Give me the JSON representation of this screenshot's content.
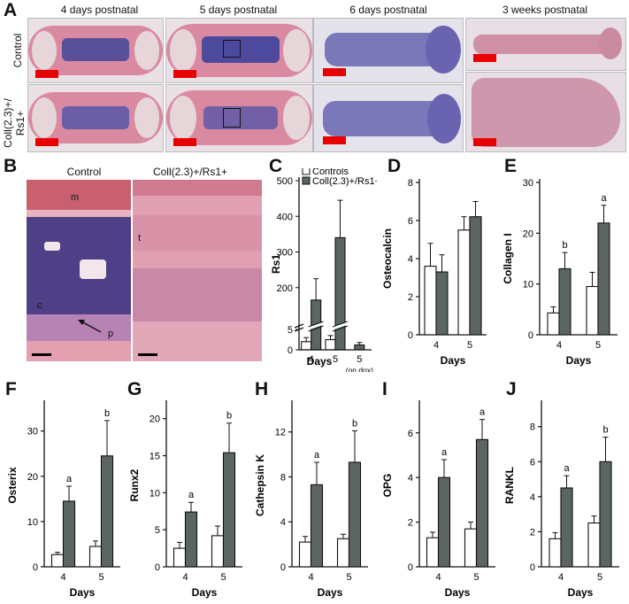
{
  "panelA": {
    "letter": "A",
    "columns": [
      "4 days postnatal",
      "5 days postnatal",
      "6 days postnatal",
      "3 weeks postnatal"
    ],
    "rows": [
      "Control",
      "Coll(2.3)+/\nRs1+"
    ],
    "row2_line1": "Coll(2.3)+/",
    "row2_line2": "Rs1+"
  },
  "panelB": {
    "letter": "B",
    "left_title": "Control",
    "right_title": "Coll(2.3)+/Rs1+",
    "labels": {
      "m": "m",
      "t": "t",
      "c": "c",
      "p": "p"
    }
  },
  "colors": {
    "control": "#ffffff",
    "rs1": "#5b6662",
    "scale_bar": "#e80000",
    "he_pink": "#d98aa0",
    "marrow": "#5a4f9a"
  },
  "chart_data": [
    {
      "id": "C",
      "letter": "C",
      "type": "bar",
      "ylabel": "Rs1",
      "xlabel": "Days",
      "categories": [
        "4",
        "5",
        "5"
      ],
      "category_sub": [
        "",
        "",
        "(on dox)"
      ],
      "legend": [
        "Controls",
        "Coll(2.3)+/Rs1+"
      ],
      "yticks_upper": [
        200,
        300,
        400,
        500
      ],
      "yticks_lower": [
        0,
        5
      ],
      "ylim_upper": [
        100,
        500
      ],
      "ylim_lower": [
        0,
        5
      ],
      "broken_axis": true,
      "series": [
        {
          "name": "Controls",
          "values": [
            2,
            2.5,
            null
          ],
          "err": [
            1,
            1,
            null
          ]
        },
        {
          "name": "Coll(2.3)+/Rs1+",
          "values": [
            165,
            340,
            1.2
          ],
          "err": [
            60,
            105,
            0.6
          ]
        }
      ]
    },
    {
      "id": "D",
      "letter": "D",
      "type": "bar",
      "ylabel": "Osteocalcin",
      "xlabel": "Days",
      "categories": [
        "4",
        "5"
      ],
      "yticks": [
        0,
        2,
        4,
        6,
        8
      ],
      "ylim": [
        0,
        8
      ],
      "series": [
        {
          "name": "Controls",
          "values": [
            3.6,
            5.5
          ],
          "err": [
            1.2,
            0.7
          ]
        },
        {
          "name": "Coll(2.3)+/Rs1+",
          "values": [
            3.3,
            6.2
          ],
          "err": [
            0.9,
            0.8
          ]
        }
      ],
      "annotations": []
    },
    {
      "id": "E",
      "letter": "E",
      "type": "bar",
      "ylabel": "Collagen I",
      "xlabel": "Days",
      "categories": [
        "4",
        "5"
      ],
      "yticks": [
        0,
        10,
        20,
        30
      ],
      "ylim": [
        0,
        30
      ],
      "series": [
        {
          "name": "Controls",
          "values": [
            4.3,
            9.5
          ],
          "err": [
            1.2,
            2.8
          ]
        },
        {
          "name": "Coll(2.3)+/Rs1+",
          "values": [
            13,
            22
          ],
          "err": [
            3.2,
            3.5
          ]
        }
      ],
      "annotations": [
        "b",
        "a"
      ]
    },
    {
      "id": "F",
      "letter": "F",
      "type": "bar",
      "ylabel": "Osterix",
      "xlabel": "Days",
      "categories": [
        "4",
        "5"
      ],
      "yticks": [
        0,
        10,
        20,
        30
      ],
      "ylim": [
        0,
        36
      ],
      "series": [
        {
          "name": "Controls",
          "values": [
            2.7,
            4.5
          ],
          "err": [
            0.5,
            1.2
          ]
        },
        {
          "name": "Coll(2.3)+/Rs1+",
          "values": [
            14.5,
            24.5
          ],
          "err": [
            3.3,
            7.8
          ]
        }
      ],
      "annotations": [
        "a",
        "b"
      ]
    },
    {
      "id": "G",
      "letter": "G",
      "type": "bar",
      "ylabel": "Runx2",
      "xlabel": "Days",
      "categories": [
        "4",
        "5"
      ],
      "yticks": [
        0,
        5,
        10,
        15,
        20
      ],
      "ylim": [
        0,
        22
      ],
      "series": [
        {
          "name": "Controls",
          "values": [
            2.5,
            4.2
          ],
          "err": [
            0.8,
            1.3
          ]
        },
        {
          "name": "Coll(2.3)+/Rs1+",
          "values": [
            7.4,
            15.4
          ],
          "err": [
            1.3,
            4.0
          ]
        }
      ],
      "annotations": [
        "a",
        "b"
      ]
    },
    {
      "id": "H",
      "letter": "H",
      "type": "bar",
      "ylabel": "Cathepsin K",
      "xlabel": "Days",
      "categories": [
        "4",
        "5"
      ],
      "yticks": [
        0,
        4,
        8,
        12
      ],
      "ylim": [
        0,
        14.5
      ],
      "series": [
        {
          "name": "Controls",
          "values": [
            2.2,
            2.5
          ],
          "err": [
            0.5,
            0.4
          ]
        },
        {
          "name": "Coll(2.3)+/Rs1+",
          "values": [
            7.3,
            9.3
          ],
          "err": [
            2.0,
            2.8
          ]
        }
      ],
      "annotations": [
        "a",
        "b"
      ]
    },
    {
      "id": "I",
      "letter": "I",
      "type": "bar",
      "ylabel": "OPG",
      "xlabel": "Days",
      "categories": [
        "4",
        "5"
      ],
      "yticks": [
        0,
        2,
        4,
        6
      ],
      "ylim": [
        0,
        7.3
      ],
      "series": [
        {
          "name": "Controls",
          "values": [
            1.3,
            1.7
          ],
          "err": [
            0.25,
            0.3
          ]
        },
        {
          "name": "Coll(2.3)+/Rs1+",
          "values": [
            4.0,
            5.7
          ],
          "err": [
            0.8,
            0.9
          ]
        }
      ],
      "annotations": [
        "a",
        "a"
      ]
    },
    {
      "id": "J",
      "letter": "J",
      "type": "bar",
      "ylabel": "RANKL",
      "xlabel": "Days",
      "categories": [
        "4",
        "5"
      ],
      "yticks": [
        0,
        2,
        4,
        6,
        8
      ],
      "ylim": [
        0,
        9.3
      ],
      "series": [
        {
          "name": "Controls",
          "values": [
            1.6,
            2.5
          ],
          "err": [
            0.35,
            0.4
          ]
        },
        {
          "name": "Coll(2.3)+/Rs1+",
          "values": [
            4.5,
            6.0
          ],
          "err": [
            0.7,
            1.4
          ]
        }
      ],
      "annotations": [
        "a",
        "b"
      ]
    }
  ]
}
